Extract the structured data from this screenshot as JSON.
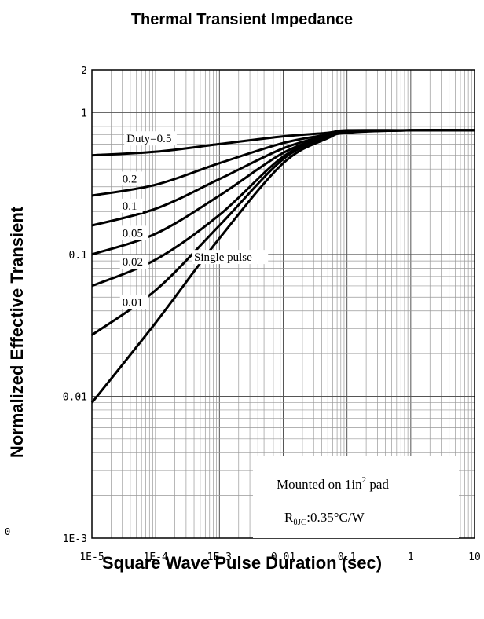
{
  "chart_data": {
    "type": "line",
    "title": "Thermal Transient Impedance",
    "xlabel": "Square Wave Pulse Duration (sec)",
    "ylabel": "Normalized Effective Transient",
    "x_scale": "log",
    "y_scale": "log",
    "xlim": [
      1e-05,
      10
    ],
    "ylim": [
      0.001,
      2
    ],
    "grid": true,
    "x_tick_labels": [
      "1E-5",
      "1E-4",
      "1E-3",
      "0.01",
      "0.1",
      "1",
      "10"
    ],
    "x_tick_values": [
      1e-05,
      0.0001,
      0.001,
      0.01,
      0.1,
      1,
      10
    ],
    "y_tick_labels": [
      "1E-3",
      "0.01",
      "0.1",
      "1",
      "2"
    ],
    "y_tick_values": [
      0.001,
      0.01,
      0.1,
      1,
      2
    ],
    "series": [
      {
        "name": "Duty=0.5",
        "x": [
          1e-05,
          0.0001,
          0.001,
          0.01,
          0.05,
          0.1,
          1,
          10
        ],
        "y": [
          0.5,
          0.53,
          0.6,
          0.68,
          0.72,
          0.75,
          0.75,
          0.75
        ]
      },
      {
        "name": "0.2",
        "x": [
          1e-05,
          0.0001,
          0.001,
          0.01,
          0.05,
          0.1,
          1,
          10
        ],
        "y": [
          0.26,
          0.31,
          0.44,
          0.61,
          0.7,
          0.74,
          0.75,
          0.75
        ]
      },
      {
        "name": "0.1",
        "x": [
          1e-05,
          0.0001,
          0.001,
          0.01,
          0.05,
          0.1,
          1,
          10
        ],
        "y": [
          0.16,
          0.21,
          0.34,
          0.56,
          0.69,
          0.74,
          0.75,
          0.75
        ]
      },
      {
        "name": "0.05",
        "x": [
          1e-05,
          0.0001,
          0.001,
          0.01,
          0.05,
          0.1,
          1,
          10
        ],
        "y": [
          0.1,
          0.14,
          0.26,
          0.52,
          0.68,
          0.73,
          0.75,
          0.75
        ]
      },
      {
        "name": "0.02",
        "x": [
          1e-05,
          0.0001,
          0.001,
          0.01,
          0.05,
          0.1,
          1,
          10
        ],
        "y": [
          0.06,
          0.092,
          0.19,
          0.49,
          0.67,
          0.73,
          0.75,
          0.75
        ]
      },
      {
        "name": "0.01",
        "x": [
          1e-05,
          0.0001,
          0.001,
          0.01,
          0.05,
          0.1,
          1,
          10
        ],
        "y": [
          0.027,
          0.056,
          0.16,
          0.47,
          0.67,
          0.73,
          0.75,
          0.75
        ]
      },
      {
        "name": "Single pulse",
        "x": [
          1e-05,
          0.0001,
          0.001,
          0.01,
          0.05,
          0.1,
          1,
          10
        ],
        "y": [
          0.009,
          0.033,
          0.13,
          0.44,
          0.66,
          0.72,
          0.75,
          0.75
        ]
      }
    ],
    "annotations": {
      "mounted_prefix": "Mounted on 1in",
      "mounted_sup": "2",
      "mounted_suffix": " pad",
      "r_main": "R",
      "r_sub": "θJC",
      "r_value": ":0.35°C/W"
    },
    "colors": {
      "line": "#000000",
      "grid": "#999999",
      "background": "#ffffff"
    }
  },
  "stray_label": "0"
}
